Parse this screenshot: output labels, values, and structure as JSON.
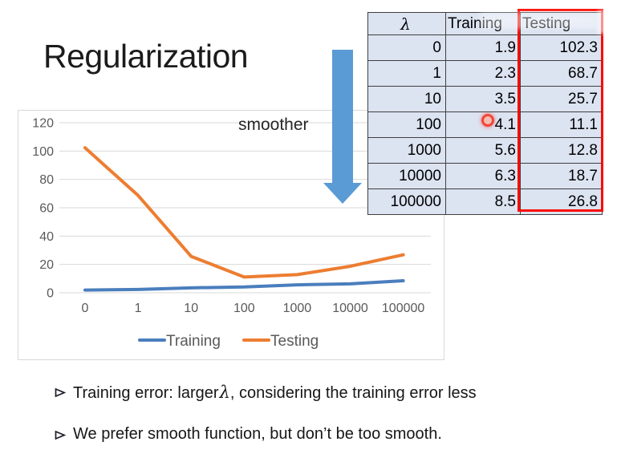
{
  "title": "Regularization",
  "smoother_label": "smoother",
  "bullet_marker": "➢",
  "bullets": [
    {
      "pre": "Training error: larger",
      "lambda": "λ",
      "post": ", considering the training error less"
    },
    {
      "pre": "We prefer smooth function, but don’t be too smooth.",
      "lambda": "",
      "post": ""
    }
  ],
  "table": {
    "headers": [
      "λ",
      "Training",
      "Testing"
    ],
    "rows": [
      [
        "0",
        "1.9",
        "102.3"
      ],
      [
        "1",
        "2.3",
        "68.7"
      ],
      [
        "10",
        "3.5",
        "25.7"
      ],
      [
        "100",
        "4.1",
        "11.1"
      ],
      [
        "1000",
        "5.6",
        "12.8"
      ],
      [
        "10000",
        "6.3",
        "18.7"
      ],
      [
        "100000",
        "8.5",
        "26.8"
      ]
    ],
    "highlighted_column": "Testing",
    "fill_color": "#dce3f1",
    "border_color": "#3f3f3f",
    "highlight_box_color": "#fb0b06"
  },
  "chart_data": {
    "type": "line",
    "title": "",
    "xlabel": "",
    "ylabel": "",
    "categories": [
      "0",
      "1",
      "10",
      "100",
      "1000",
      "10000",
      "100000"
    ],
    "series": [
      {
        "name": "Training",
        "color": "#4a7ebd",
        "values": [
          1.9,
          2.3,
          3.5,
          4.1,
          5.6,
          6.3,
          8.5
        ]
      },
      {
        "name": "Testing",
        "color": "#ed7d31",
        "values": [
          102.3,
          68.7,
          25.7,
          11.1,
          12.8,
          18.7,
          26.8
        ]
      }
    ],
    "ylim": [
      0,
      120
    ],
    "yticks": [
      0,
      20,
      40,
      60,
      80,
      100,
      120
    ],
    "grid": true,
    "legend_position": "bottom",
    "tick_color": "#595959",
    "grid_color": "#d9d9d9"
  },
  "arrow": {
    "direction": "down",
    "color": "#5b9bd5"
  },
  "laser_pointer": {
    "color": "#f43626"
  }
}
